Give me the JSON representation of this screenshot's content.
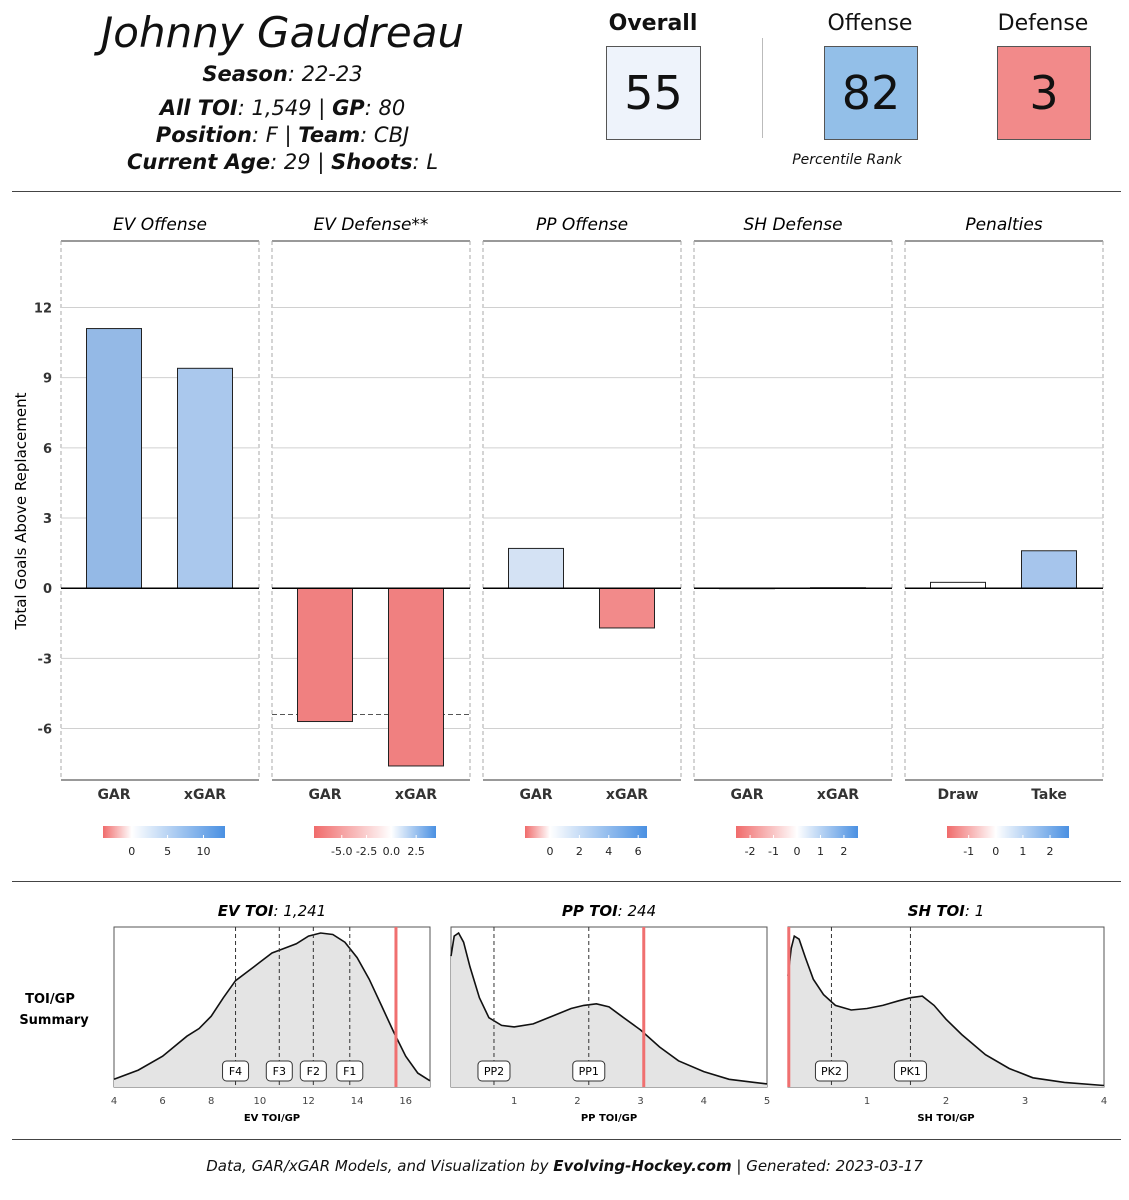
{
  "player": {
    "name": "Johnny Gaudreau",
    "season_label": "Season",
    "season": "22-23",
    "toi_label": "All TOI",
    "toi": "1,549",
    "gp_label": "GP",
    "gp": "80",
    "position_label": "Position",
    "position": "F",
    "team_label": "Team",
    "team": "CBJ",
    "age_label": "Current Age",
    "age": "29",
    "shoots_label": "Shoots",
    "shoots": "L"
  },
  "ratings": {
    "overall_label": "Overall",
    "overall": "55",
    "offense_label": "Offense",
    "offense": "82",
    "defense_label": "Defense",
    "defense": "3",
    "percentile_label": "Percentile Rank",
    "colors": {
      "overall": "#eef3fb",
      "offense": "#93bfe8",
      "defense": "#f28a8a"
    }
  },
  "chart_data": [
    {
      "type": "bar",
      "ylabel": "Total Goals Above Replacement",
      "ylim": [
        -8.2,
        14.8
      ],
      "yticks": [
        12,
        9,
        6,
        3,
        0,
        -3,
        -6
      ],
      "ytick_labels": [
        "12",
        "9",
        "6",
        "3",
        "0",
        "-3",
        "-6"
      ],
      "grid": true,
      "panels": [
        {
          "title": "EV Offense",
          "categories": [
            "GAR",
            "xGAR"
          ],
          "values": [
            11.1,
            9.4
          ],
          "colors": [
            "#94b9e6",
            "#aac8ed"
          ],
          "legend_ticks": [
            0,
            5,
            10
          ],
          "legend_tick_labels": [
            "0",
            "5",
            "10"
          ],
          "legend_range": [
            -4,
            13
          ]
        },
        {
          "title": "EV Defense**",
          "categories": [
            "GAR",
            "xGAR"
          ],
          "values": [
            -5.7,
            -7.6
          ],
          "colors": [
            "#f08080",
            "#f08080"
          ],
          "reference_line": -5.4,
          "legend_ticks": [
            -5,
            -2.5,
            0,
            2.5
          ],
          "legend_tick_labels": [
            "-5.0",
            "-2.5",
            "0.0",
            "2.5"
          ],
          "legend_range": [
            -7.8,
            4.5
          ]
        },
        {
          "title": "PP Offense",
          "categories": [
            "GAR",
            "xGAR"
          ],
          "values": [
            1.7,
            -1.7
          ],
          "colors": [
            "#d4e2f4",
            "#f28a8a"
          ],
          "legend_ticks": [
            0,
            2,
            4,
            6
          ],
          "legend_tick_labels": [
            "0",
            "2",
            "4",
            "6"
          ],
          "legend_range": [
            -1.7,
            6.6
          ]
        },
        {
          "title": "SH Defense",
          "categories": [
            "GAR",
            "xGAR"
          ],
          "values": [
            0.0,
            0.02
          ],
          "colors": [
            "#ffffff",
            "#ffffff"
          ],
          "legend_ticks": [
            -2,
            -1,
            0,
            1,
            2
          ],
          "legend_tick_labels": [
            "-2",
            "-1",
            "0",
            "1",
            "2"
          ],
          "legend_range": [
            -2.6,
            2.6
          ]
        },
        {
          "title": "Penalties",
          "categories": [
            "Draw",
            "Take"
          ],
          "values": [
            0.25,
            1.6
          ],
          "colors": [
            "#ffffff",
            "#a6c5ec"
          ],
          "legend_ticks": [
            -1,
            0,
            1,
            2
          ],
          "legend_tick_labels": [
            "-1",
            "0",
            "1",
            "2"
          ],
          "legend_range": [
            -1.8,
            2.7
          ]
        }
      ]
    },
    {
      "type": "area",
      "row_label": [
        "TOI/GP",
        "Summary"
      ],
      "panels": [
        {
          "title_label": "EV TOI",
          "title_value": "1,241",
          "xlabel": "EV TOI/GP",
          "xlim": [
            4,
            17
          ],
          "xticks": [
            4,
            6,
            8,
            10,
            12,
            14,
            16
          ],
          "xtick_labels": [
            "4",
            "6",
            "8",
            "10",
            "12",
            "14",
            "16"
          ],
          "density_x": [
            4,
            5,
            6,
            7,
            7.5,
            8,
            8.5,
            9,
            9.5,
            10,
            10.5,
            11,
            11.5,
            12,
            12.5,
            13,
            13.5,
            14,
            14.5,
            15,
            15.5,
            16,
            16.5,
            17
          ],
          "density_y": [
            0.05,
            0.11,
            0.2,
            0.33,
            0.38,
            0.46,
            0.58,
            0.69,
            0.75,
            0.81,
            0.87,
            0.9,
            0.93,
            0.98,
            1.0,
            0.99,
            0.94,
            0.84,
            0.7,
            0.53,
            0.36,
            0.2,
            0.09,
            0.04
          ],
          "markers": [
            {
              "label": "F4",
              "x": 9.0
            },
            {
              "label": "F3",
              "x": 10.8
            },
            {
              "label": "F2",
              "x": 12.2
            },
            {
              "label": "F1",
              "x": 13.7
            }
          ],
          "player_value": 15.6
        },
        {
          "title_label": "PP TOI",
          "title_value": "244",
          "xlabel": "PP TOI/GP",
          "xlim": [
            0,
            5
          ],
          "xticks": [
            1,
            2,
            3,
            4,
            5
          ],
          "xtick_labels": [
            "1",
            "2",
            "3",
            "4",
            "5"
          ],
          "density_x": [
            0,
            0.05,
            0.12,
            0.2,
            0.3,
            0.45,
            0.6,
            0.8,
            1.0,
            1.3,
            1.6,
            1.9,
            2.1,
            2.3,
            2.5,
            2.7,
            3.0,
            3.3,
            3.6,
            4.0,
            4.4,
            4.8,
            5.0
          ],
          "density_y": [
            0.85,
            0.98,
            1.0,
            0.94,
            0.78,
            0.58,
            0.45,
            0.4,
            0.39,
            0.41,
            0.46,
            0.51,
            0.53,
            0.54,
            0.52,
            0.46,
            0.37,
            0.26,
            0.17,
            0.1,
            0.05,
            0.03,
            0.02
          ],
          "markers": [
            {
              "label": "PP2",
              "x": 0.68
            },
            {
              "label": "PP1",
              "x": 2.18
            }
          ],
          "player_value": 3.05
        },
        {
          "title_label": "SH TOI",
          "title_value": "1",
          "xlabel": "SH TOI/GP",
          "xlim": [
            0,
            4
          ],
          "xticks": [
            1,
            2,
            3,
            4
          ],
          "xtick_labels": [
            "1",
            "2",
            "3",
            "4"
          ],
          "density_x": [
            0,
            0.04,
            0.08,
            0.14,
            0.22,
            0.32,
            0.45,
            0.6,
            0.8,
            1.0,
            1.2,
            1.4,
            1.55,
            1.7,
            1.85,
            2.0,
            2.2,
            2.5,
            2.8,
            3.1,
            3.5,
            4.0
          ],
          "density_y": [
            0.72,
            0.9,
            0.98,
            0.96,
            0.84,
            0.7,
            0.6,
            0.53,
            0.5,
            0.51,
            0.53,
            0.56,
            0.58,
            0.59,
            0.53,
            0.44,
            0.34,
            0.21,
            0.12,
            0.06,
            0.03,
            0.01
          ],
          "markers": [
            {
              "label": "PK2",
              "x": 0.55
            },
            {
              "label": "PK1",
              "x": 1.55
            }
          ],
          "player_value": 0.01
        }
      ]
    }
  ],
  "footer": {
    "text1": "Data, GAR/xGAR Models, and Visualization by ",
    "site": "Evolving-Hockey.com",
    "text2": "  |  Generated: 2023-03-17"
  }
}
